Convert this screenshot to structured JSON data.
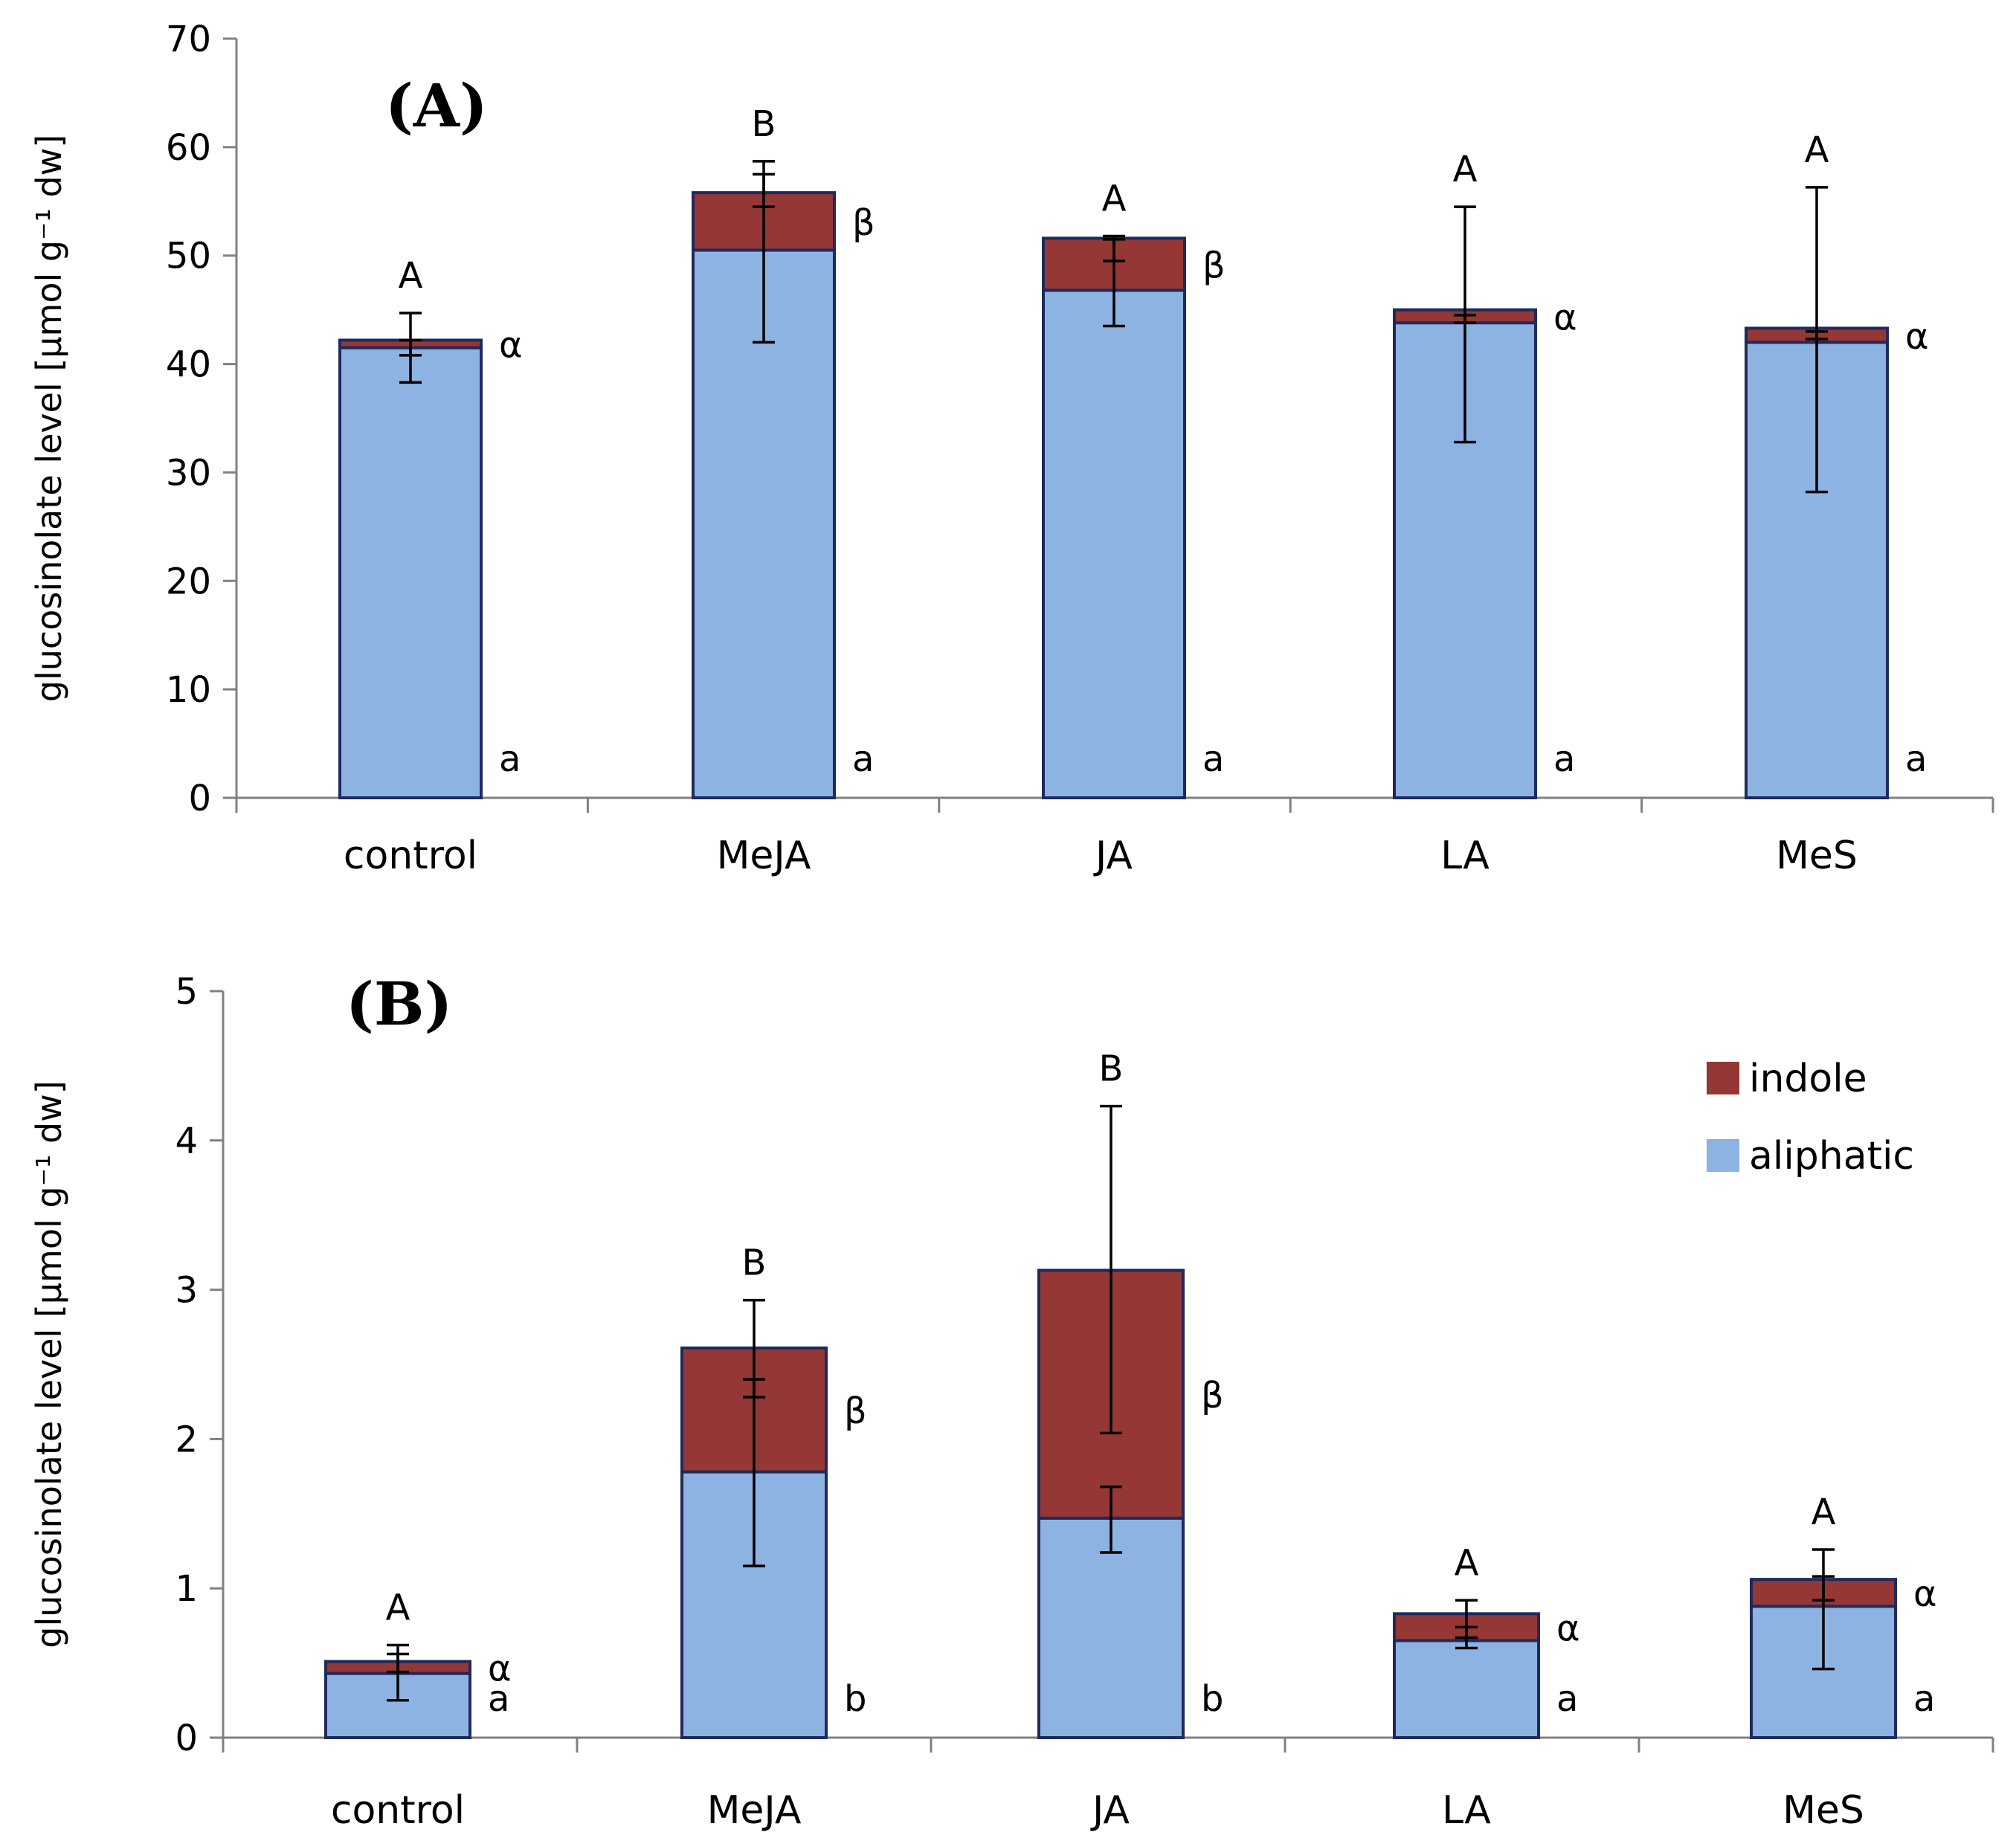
{
  "colors": {
    "aliphatic": "#8DB3E2",
    "indole": "#953735",
    "bar_edge": "#1F2A5C",
    "axis": "#808080",
    "ink": "#000000"
  },
  "chart_data": [
    {
      "type": "bar",
      "stacked": true,
      "panel_label": "(A)",
      "ylabel": "glucosinolate level [µmol g⁻¹ dw]",
      "ylim": [
        0,
        70
      ],
      "yticks": [
        0,
        10,
        20,
        30,
        40,
        50,
        60,
        70
      ],
      "categories": [
        "control",
        "MeJA",
        "JA",
        "LA",
        "MeS"
      ],
      "series": [
        {
          "name": "aliphatic",
          "values": [
            41.5,
            50.5,
            46.8,
            43.8,
            42.0
          ],
          "err_low": [
            38.3,
            42.0,
            43.5,
            32.8,
            28.2
          ],
          "err_high": [
            44.7,
            58.7,
            51.5,
            54.5,
            56.3
          ],
          "letters": [
            "a",
            "a",
            "a",
            "a",
            "a"
          ]
        },
        {
          "name": "indole",
          "values": [
            0.7,
            5.3,
            4.8,
            1.2,
            1.3
          ],
          "err_low": [
            40.8,
            54.5,
            49.5,
            43.8,
            42.3
          ],
          "err_high": [
            42.2,
            57.5,
            51.8,
            44.5,
            43.0
          ]
        }
      ],
      "indole_letters": [
        "α",
        "β",
        "β",
        "α",
        "α"
      ],
      "total_letters": [
        "A",
        "B",
        "A",
        "A",
        "A"
      ]
    },
    {
      "type": "bar",
      "stacked": true,
      "panel_label": "(B)",
      "ylabel": "glucosinolate level [µmol g⁻¹ dw]",
      "ylim": [
        0,
        5
      ],
      "yticks": [
        0,
        1,
        2,
        3,
        4,
        5
      ],
      "categories": [
        "control",
        "MeJA",
        "JA",
        "LA",
        "MeS"
      ],
      "series": [
        {
          "name": "aliphatic",
          "values": [
            0.43,
            1.78,
            1.47,
            0.65,
            0.88
          ],
          "err_low": [
            0.25,
            1.15,
            1.24,
            0.6,
            0.46
          ],
          "err_high": [
            0.62,
            2.4,
            1.68,
            0.74,
            1.08
          ],
          "letters": [
            "a",
            "b",
            "b",
            "a",
            "a"
          ]
        },
        {
          "name": "indole",
          "values": [
            0.08,
            0.83,
            1.66,
            0.18,
            0.18
          ],
          "err_low": [
            0.44,
            2.28,
            2.04,
            0.67,
            0.92
          ],
          "err_high": [
            0.56,
            2.93,
            4.23,
            0.92,
            1.26
          ]
        }
      ],
      "indole_letters": [
        "α",
        "β",
        "β",
        "α",
        "α"
      ],
      "total_letters": [
        "A",
        "B",
        "B",
        "A",
        "A"
      ]
    }
  ],
  "legend": {
    "items": [
      {
        "name": "indole",
        "label": "indole"
      },
      {
        "name": "aliphatic",
        "label": "aliphatic"
      }
    ]
  }
}
